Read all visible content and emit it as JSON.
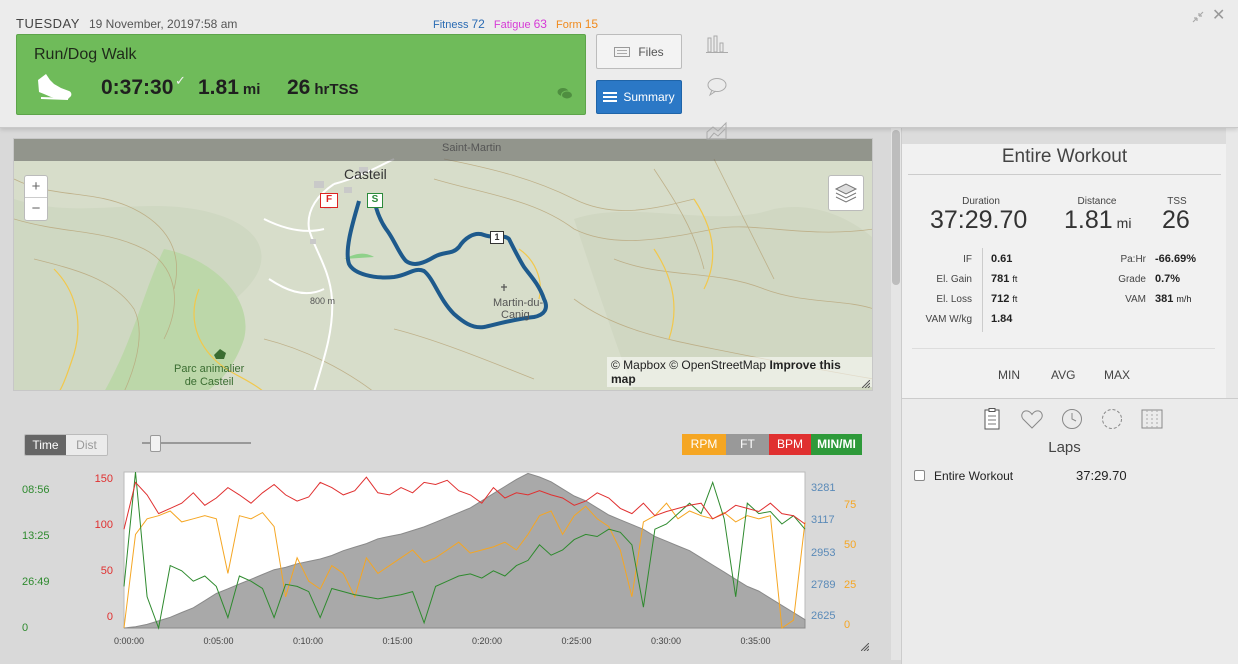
{
  "header": {
    "day": "TUESDAY",
    "date": "19 November, 2019",
    "time": "7:58 am",
    "fitness_label": "Fitness",
    "fitness_value": "72",
    "fatigue_label": "Fatigue",
    "fatigue_value": "63",
    "form_label": "Form",
    "form_value": "15",
    "colors": {
      "fitness": "#2a6bb3",
      "fatigue": "#d63ad6",
      "form": "#f08a1c"
    }
  },
  "workout": {
    "title": "Run/Dog Walk",
    "duration": "0:37:30",
    "distance": "1.81",
    "distance_unit": "mi",
    "tss": "26",
    "tss_unit": "hrTSS",
    "card_color": "#6fbb5a"
  },
  "buttons": {
    "files": "Files",
    "summary": "Summary"
  },
  "map": {
    "place_castell": "Casteil",
    "place_st_martin": "Saint-Martin",
    "place_parc_line1": "Parc animalier",
    "place_parc_line2": "de Casteil",
    "place_martin_line1": "Martin-du-",
    "place_martin_line2": "Canig",
    "contour_800": "800 m",
    "marker_finish": "F",
    "marker_start": "S",
    "marker_lap": "1",
    "zoom_in": "+",
    "zoom_out": "−",
    "attribution_1": "© Mapbox © OpenStreetMap",
    "attribution_2": "Improve this map"
  },
  "chart_controls": {
    "time": "Time",
    "dist": "Dist",
    "legend": {
      "rpm": "RPM",
      "ft": "FT",
      "bpm": "BPM",
      "min_mi": "MIN/MI"
    }
  },
  "chart_data": {
    "type": "line",
    "x_unit": "time",
    "x_ticks": [
      "0:00:00",
      "0:05:00",
      "0:10:00",
      "0:15:00",
      "0:20:00",
      "0:25:00",
      "0:30:00",
      "0:35:00"
    ],
    "axes": {
      "pace_ticks": [
        "08:56",
        "13:25",
        "26:49",
        "0"
      ],
      "hr_ticks": [
        "150",
        "100",
        "50",
        "0"
      ],
      "elev_ticks": [
        "3281",
        "3117",
        "2953",
        "2789",
        "2625"
      ],
      "cad_ticks": [
        "75",
        "50",
        "25",
        "0"
      ]
    },
    "series": [
      {
        "name": "BPM",
        "color": "#e03030",
        "ylim": [
          0,
          150
        ],
        "values": [
          95,
          140,
          128,
          110,
          115,
          120,
          130,
          118,
          125,
          135,
          128,
          120,
          130,
          138,
          128,
          122,
          126,
          140,
          135,
          128,
          132,
          145,
          130,
          128,
          135,
          130,
          140,
          138,
          142,
          132,
          128,
          120,
          135,
          125,
          130,
          128,
          132,
          128,
          125,
          118,
          122,
          130,
          125,
          115,
          110,
          120,
          108,
          112,
          115,
          118,
          120,
          105,
          110,
          118,
          115,
          112,
          120,
          110,
          108,
          100
        ]
      },
      {
        "name": "RPM",
        "color": "#f5a623",
        "ylim": [
          0,
          100
        ],
        "values": [
          0,
          60,
          70,
          72,
          75,
          68,
          70,
          72,
          70,
          35,
          72,
          70,
          74,
          65,
          20,
          45,
          30,
          25,
          40,
          35,
          20,
          45,
          35,
          40,
          45,
          50,
          42,
          45,
          50,
          55,
          48,
          50,
          52,
          55,
          50,
          60,
          72,
          75,
          60,
          72,
          78,
          70,
          65,
          50,
          20,
          68,
          72,
          80,
          70,
          75,
          72,
          70,
          74,
          68,
          72,
          70,
          72,
          0,
          5,
          68
        ]
      },
      {
        "name": "FT",
        "color": "#8a8a8a",
        "ylim": [
          2625,
          3281
        ],
        "values": [
          2625,
          2630,
          2640,
          2655,
          2670,
          2690,
          2710,
          2740,
          2770,
          2790,
          2810,
          2830,
          2850,
          2870,
          2880,
          2895,
          2905,
          2915,
          2930,
          2950,
          2965,
          2980,
          3000,
          3010,
          3020,
          3035,
          3050,
          3070,
          3090,
          3110,
          3130,
          3160,
          3190,
          3220,
          3250,
          3275,
          3260,
          3240,
          3210,
          3180,
          3160,
          3130,
          3100,
          3080,
          3060,
          3040,
          3010,
          2990,
          2970,
          2950,
          2920,
          2890,
          2860,
          2830,
          2800,
          2780,
          2750,
          2720,
          2690,
          2660
        ]
      },
      {
        "name": "MIN/MI",
        "color": "#2e8a2e",
        "ylim": [
          0,
          150
        ],
        "values": [
          40,
          150,
          30,
          0,
          60,
          55,
          45,
          50,
          40,
          10,
          50,
          45,
          38,
          10,
          42,
          40,
          35,
          10,
          38,
          35,
          32,
          30,
          28,
          30,
          32,
          35,
          5,
          40,
          45,
          50,
          52,
          48,
          55,
          50,
          60,
          65,
          80,
          70,
          75,
          85,
          90,
          88,
          95,
          92,
          80,
          20,
          95,
          100,
          110,
          120,
          110,
          140,
          105,
          30,
          120,
          110,
          112,
          100,
          108,
          95
        ]
      }
    ]
  },
  "summary": {
    "title": "Entire Workout",
    "duration_label": "Duration",
    "duration_value": "37:29.70",
    "distance_label": "Distance",
    "distance_value": "1.81",
    "distance_unit": "mi",
    "tss_label": "TSS",
    "tss_value": "26",
    "if_label": "IF",
    "if_value": "0.61",
    "gain_label": "El. Gain",
    "gain_value": "781",
    "gain_unit": "ft",
    "loss_label": "El. Loss",
    "loss_value": "712",
    "loss_unit": "ft",
    "vamwkg_label": "VAM W/kg",
    "vamwkg_value": "1.84",
    "pahr_label": "Pa:Hr",
    "pahr_value": "-66.69%",
    "grade_label": "Grade",
    "grade_value": "0.7%",
    "vam_label": "VAM",
    "vam_value": "381",
    "vam_unit": "m/h",
    "min_label": "MIN",
    "avg_label": "AVG",
    "max_label": "MAX"
  },
  "laps": {
    "title": "Laps",
    "rows": [
      {
        "name": "Entire Workout",
        "time": "37:29.70"
      }
    ]
  },
  "icons": [
    "shoe-icon",
    "check-icon",
    "comment-icon",
    "file-icon",
    "list-icon",
    "bar-chart-icon",
    "chat-bubble-icon",
    "area-chart-icon",
    "collapse-icon",
    "close-icon",
    "layers-icon",
    "clipboard-icon",
    "heart-icon",
    "clock-icon",
    "dashed-circle-icon",
    "grid-icon",
    "resize-icon"
  ]
}
